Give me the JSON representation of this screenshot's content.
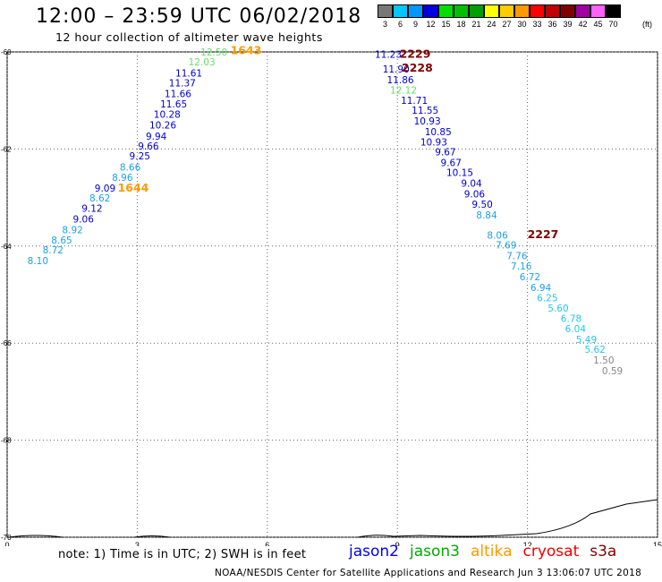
{
  "header": {
    "title": "12:00 – 23:59 UTC 06/02/2018",
    "subtitle": "12 hour collection of altimeter wave heights"
  },
  "colorbar": {
    "unit": "(ft)",
    "entries": [
      {
        "label": "3",
        "color": "#777777"
      },
      {
        "label": "6",
        "color": "#00c8ff"
      },
      {
        "label": "9",
        "color": "#0096ff"
      },
      {
        "label": "12",
        "color": "#0000e0"
      },
      {
        "label": "15",
        "color": "#00e000"
      },
      {
        "label": "18",
        "color": "#00c000"
      },
      {
        "label": "21",
        "color": "#00a000"
      },
      {
        "label": "24",
        "color": "#ffff00"
      },
      {
        "label": "27",
        "color": "#ffcc00"
      },
      {
        "label": "30",
        "color": "#ff9900"
      },
      {
        "label": "33",
        "color": "#ff0000"
      },
      {
        "label": "36",
        "color": "#c00000"
      },
      {
        "label": "39",
        "color": "#800000"
      },
      {
        "label": "42",
        "color": "#a000a0"
      },
      {
        "label": "45",
        "color": "#ff60ff"
      },
      {
        "label": "70",
        "color": "#000000"
      }
    ]
  },
  "chart_data": {
    "type": "scatter",
    "xlim": [
      0,
      15
    ],
    "ylim": [
      -70,
      -60
    ],
    "x_ticks": [
      "0",
      "3",
      "6",
      "9",
      "12",
      "15"
    ],
    "y_ticks": [
      "-60",
      "-62",
      "-64",
      "-66",
      "-68",
      "-70"
    ],
    "grid": true,
    "series": [
      {
        "name": "",
        "points": [
          {
            "x": 5.08,
            "y": -60.0,
            "label": "12.50",
            "color": "#66dd66"
          },
          {
            "x": 4.8,
            "y": -60.2,
            "label": "12.03",
            "color": "#66dd66"
          },
          {
            "x": 4.5,
            "y": -60.43,
            "label": "11.61",
            "color": "#0000cc"
          },
          {
            "x": 4.35,
            "y": -60.64,
            "label": "11.37",
            "color": "#0000cc"
          },
          {
            "x": 4.25,
            "y": -60.86,
            "label": "11.66",
            "color": "#0000cc"
          },
          {
            "x": 4.15,
            "y": -61.07,
            "label": "11.65",
            "color": "#0000cc"
          },
          {
            "x": 4.0,
            "y": -61.28,
            "label": "10.28",
            "color": "#0000cc"
          },
          {
            "x": 3.9,
            "y": -61.5,
            "label": "10.26",
            "color": "#0000cc"
          },
          {
            "x": 3.68,
            "y": -61.73,
            "label": "9.94",
            "color": "#0000cc"
          },
          {
            "x": 3.5,
            "y": -61.94,
            "label": "9.66",
            "color": "#0000cc"
          },
          {
            "x": 3.3,
            "y": -62.14,
            "label": "9.25",
            "color": "#0000cc"
          },
          {
            "x": 3.08,
            "y": -62.37,
            "label": "8.66",
            "color": "#1ca0e8"
          },
          {
            "x": 2.9,
            "y": -62.58,
            "label": "8.96",
            "color": "#1ca0e8"
          },
          {
            "x": 2.5,
            "y": -62.8,
            "label": "9.09",
            "color": "#0000cc"
          },
          {
            "x": 2.38,
            "y": -63.01,
            "label": "8.62",
            "color": "#1ca0e8"
          },
          {
            "x": 2.2,
            "y": -63.22,
            "label": "9.12",
            "color": "#0000cc"
          },
          {
            "x": 2.0,
            "y": -63.44,
            "label": "9.06",
            "color": "#0000cc"
          },
          {
            "x": 1.75,
            "y": -63.66,
            "label": "8.92",
            "color": "#1ca0e8"
          },
          {
            "x": 1.5,
            "y": -63.87,
            "label": "8.65",
            "color": "#1ca0e8"
          },
          {
            "x": 1.3,
            "y": -64.08,
            "label": "8.72",
            "color": "#1ca0e8"
          },
          {
            "x": 0.95,
            "y": -64.3,
            "label": "8.10",
            "color": "#1ca0e8"
          },
          {
            "x": 9.1,
            "y": -60.05,
            "label": "11.23",
            "color": "#0000cc"
          },
          {
            "x": 9.28,
            "y": -60.35,
            "label": "11.90",
            "color": "#0000cc"
          },
          {
            "x": 9.38,
            "y": -60.57,
            "label": "11.86",
            "color": "#0000cc"
          },
          {
            "x": 9.45,
            "y": -60.78,
            "label": "12.12",
            "color": "#66dd66"
          },
          {
            "x": 9.7,
            "y": -61.0,
            "label": "11.71",
            "color": "#0000cc"
          },
          {
            "x": 9.95,
            "y": -61.2,
            "label": "11.55",
            "color": "#0000cc"
          },
          {
            "x": 10.0,
            "y": -61.42,
            "label": "10.93",
            "color": "#0000cc"
          },
          {
            "x": 10.25,
            "y": -61.64,
            "label": "10.85",
            "color": "#0000cc"
          },
          {
            "x": 10.15,
            "y": -61.85,
            "label": "10.93",
            "color": "#0000cc"
          },
          {
            "x": 10.35,
            "y": -62.06,
            "label": "9.67",
            "color": "#0000cc"
          },
          {
            "x": 10.48,
            "y": -62.28,
            "label": "9.67",
            "color": "#0000cc"
          },
          {
            "x": 10.75,
            "y": -62.48,
            "label": "10.15",
            "color": "#0000cc"
          },
          {
            "x": 10.95,
            "y": -62.7,
            "label": "9.04",
            "color": "#0000cc"
          },
          {
            "x": 11.02,
            "y": -62.92,
            "label": "9.06",
            "color": "#0000cc"
          },
          {
            "x": 11.2,
            "y": -63.14,
            "label": "9.50",
            "color": "#0000cc"
          },
          {
            "x": 11.3,
            "y": -63.36,
            "label": "8.84",
            "color": "#1ca0e8"
          },
          {
            "x": 11.55,
            "y": -63.77,
            "label": "8.06",
            "color": "#1ca0e8"
          },
          {
            "x": 11.75,
            "y": -63.98,
            "label": "7.69",
            "color": "#1ca0e8"
          },
          {
            "x": 12.0,
            "y": -64.2,
            "label": "7.76",
            "color": "#1ca0e8"
          },
          {
            "x": 12.1,
            "y": -64.41,
            "label": "7.16",
            "color": "#1ca0e8"
          },
          {
            "x": 12.3,
            "y": -64.63,
            "label": "6.72",
            "color": "#1ca0e8"
          },
          {
            "x": 12.55,
            "y": -64.85,
            "label": "6.94",
            "color": "#1ca0e8"
          },
          {
            "x": 12.7,
            "y": -65.06,
            "label": "6.25",
            "color": "#22c8ee"
          },
          {
            "x": 12.95,
            "y": -65.28,
            "label": "5.60",
            "color": "#22c8ee"
          },
          {
            "x": 13.25,
            "y": -65.49,
            "label": "6.78",
            "color": "#22c8ee"
          },
          {
            "x": 13.35,
            "y": -65.7,
            "label": "6.04",
            "color": "#22c8ee"
          },
          {
            "x": 13.6,
            "y": -65.92,
            "label": "5.49",
            "color": "#22c8ee"
          },
          {
            "x": 13.8,
            "y": -66.13,
            "label": "5.62",
            "color": "#22c8ee"
          },
          {
            "x": 14.0,
            "y": -66.35,
            "label": "1.50",
            "color": "#888888"
          },
          {
            "x": 14.2,
            "y": -66.57,
            "label": "0.59",
            "color": "#888888"
          }
        ]
      }
    ],
    "annotations": [
      {
        "x": 5.15,
        "y": -59.97,
        "label": "1643",
        "color": "#ff9900"
      },
      {
        "x": 2.55,
        "y": -62.8,
        "label": "1644",
        "color": "#ff9900"
      },
      {
        "x": 9.05,
        "y": -60.05,
        "label": "2229",
        "color": "#800000"
      },
      {
        "x": 9.1,
        "y": -60.33,
        "label": "2228",
        "color": "#800000"
      },
      {
        "x": 12.0,
        "y": -63.76,
        "label": "2227",
        "color": "#800000"
      }
    ]
  },
  "note": "note: 1) Time is in UTC; 2) SWH is in feet",
  "legend": [
    {
      "label": "jason2",
      "color": "#0000ee"
    },
    {
      "label": "jason3",
      "color": "#00aa00"
    },
    {
      "label": "altika",
      "color": "#ff9900"
    },
    {
      "label": "cryosat",
      "color": "#ee0000"
    },
    {
      "label": "s3a",
      "color": "#800000"
    }
  ],
  "footer": "NOAA/NESDIS Center for Satellite Applications and Research   Jun  3 13:06:07 UTC 2018"
}
